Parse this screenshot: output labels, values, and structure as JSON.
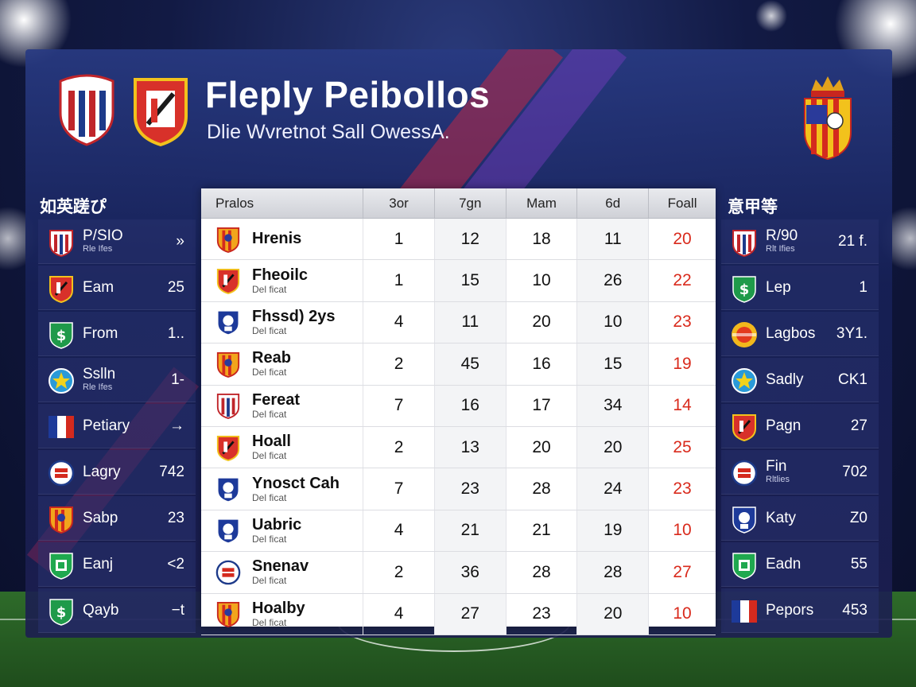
{
  "header": {
    "title": "Fleply Peibollos",
    "subtitle": "Dlie Wvretnot Sall OwessA."
  },
  "left_panel": {
    "title": "如英蹉ぴ",
    "rows": [
      {
        "name": "P/SIO",
        "sub": "Rle Ifes",
        "value": "»",
        "icon": "striped-shield-icon"
      },
      {
        "name": "Eam",
        "sub": "",
        "value": "25",
        "icon": "red-shield-icon"
      },
      {
        "name": "From",
        "sub": "",
        "value": "1..",
        "icon": "green-dollar-icon"
      },
      {
        "name": "Sslln",
        "sub": "Rle Ifes",
        "value": "1-",
        "icon": "star-badge-icon"
      },
      {
        "name": "Petiary",
        "sub": "",
        "value": "→",
        "icon": "flag-icon"
      },
      {
        "name": "Lagry",
        "sub": "",
        "value": "742",
        "icon": "round-crest-icon"
      },
      {
        "name": "Sabp",
        "sub": "",
        "value": "23",
        "icon": "orange-shield-icon"
      },
      {
        "name": "Eanj",
        "sub": "",
        "value": "<2",
        "icon": "green-shield-icon"
      },
      {
        "name": "Qayb",
        "sub": "",
        "value": "−t",
        "icon": "green-dollar-icon"
      }
    ]
  },
  "right_panel": {
    "title": "意甲等",
    "rows": [
      {
        "name": "R/90",
        "sub": "Rlt Ifies",
        "value": "21 f.",
        "icon": "striped-shield-icon"
      },
      {
        "name": "Lep",
        "sub": "",
        "value": "1",
        "icon": "green-dollar-icon"
      },
      {
        "name": "Lagbos",
        "sub": "",
        "value": "3Y1.",
        "icon": "sun-badge-icon"
      },
      {
        "name": "Sadly",
        "sub": "",
        "value": "CK1",
        "icon": "star-badge-icon"
      },
      {
        "name": "Pagn",
        "sub": "",
        "value": "27",
        "icon": "red-shield-icon"
      },
      {
        "name": "Fin",
        "sub": "Rltlies",
        "value": "702",
        "icon": "round-crest-icon"
      },
      {
        "name": "Katy",
        "sub": "",
        "value": "Z0",
        "icon": "blue-crest-icon"
      },
      {
        "name": "Eadn",
        "sub": "",
        "value": "55",
        "icon": "green-shield-icon"
      },
      {
        "name": "Pepors",
        "sub": "",
        "value": "453",
        "icon": "flag-icon"
      }
    ]
  },
  "table": {
    "columns": [
      "Pralos",
      "3or",
      "7gn",
      "Mam",
      "6d",
      "Foall"
    ],
    "rows": [
      {
        "team": "Hrenis",
        "sub": "",
        "v": [
          "1",
          "12",
          "18",
          "11",
          "20"
        ]
      },
      {
        "team": "Fheoilc",
        "sub": "Del ficat",
        "v": [
          "1",
          "15",
          "10",
          "26",
          "22"
        ]
      },
      {
        "team": "Fhssd) 2ys",
        "sub": "Del ficat",
        "v": [
          "4",
          "11",
          "20",
          "10",
          "23"
        ]
      },
      {
        "team": "Reab",
        "sub": "Del ficat",
        "v": [
          "2",
          "45",
          "16",
          "15",
          "19"
        ]
      },
      {
        "team": "Fereat",
        "sub": "Del ficat",
        "v": [
          "7",
          "16",
          "17",
          "34",
          "14"
        ]
      },
      {
        "team": "Hoall",
        "sub": "Del ficat",
        "v": [
          "2",
          "13",
          "20",
          "20",
          "25"
        ]
      },
      {
        "team": "Ynosct Cah",
        "sub": "Del ficat",
        "v": [
          "7",
          "23",
          "28",
          "24",
          "23"
        ]
      },
      {
        "team": "Uabric",
        "sub": "Del ficat",
        "v": [
          "4",
          "21",
          "21",
          "19",
          "10"
        ]
      },
      {
        "team": "Snenav",
        "sub": "Del ficat",
        "v": [
          "2",
          "36",
          "28",
          "28",
          "27"
        ]
      },
      {
        "team": "Hoalby",
        "sub": "Del ficat",
        "v": [
          "4",
          "27",
          "23",
          "20",
          "10"
        ]
      }
    ]
  },
  "colors": {
    "accent_red": "#d92a1c",
    "panel_blue": "#1a2460"
  }
}
